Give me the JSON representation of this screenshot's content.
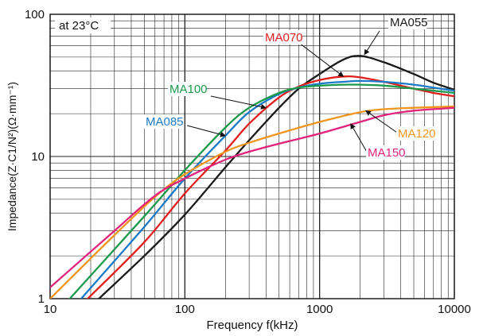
{
  "chart_data": {
    "type": "line",
    "x_scale": "log",
    "y_scale": "log",
    "xlim": [
      10,
      10000
    ],
    "ylim": [
      1,
      100
    ],
    "grid": true,
    "xlabel": "Frequency f(kHz)",
    "ylabel": "Impedance(Z·C1/N²)(Ω·mm⁻¹)",
    "condition_label": "at 23°C",
    "x_ticks": [
      {
        "value": 10,
        "label": "10"
      },
      {
        "value": 100,
        "label": "100"
      },
      {
        "value": 1000,
        "label": "1000"
      },
      {
        "value": 10000,
        "label": "10000"
      }
    ],
    "y_ticks": [
      {
        "value": 1,
        "label": "1"
      },
      {
        "value": 10,
        "label": "10"
      },
      {
        "value": 100,
        "label": "100"
      }
    ],
    "series": [
      {
        "name": "MA055",
        "color": "#1a1a1a",
        "x": [
          23,
          50,
          100,
          200,
          300,
          500,
          700,
          1000,
          1500,
          2000,
          3000,
          5000,
          7000,
          10000
        ],
        "y": [
          1.0,
          2.0,
          3.9,
          8.4,
          13.0,
          22.0,
          30.0,
          38.0,
          48.0,
          51.0,
          46.0,
          38.0,
          33.0,
          29.5
        ]
      },
      {
        "name": "MA070",
        "color": "#e01e1e",
        "x": [
          19,
          50,
          100,
          200,
          300,
          500,
          700,
          1000,
          1500,
          2000,
          3000,
          5000,
          7000,
          10000
        ],
        "y": [
          1.0,
          2.5,
          5.5,
          11.0,
          17.0,
          26.0,
          31.0,
          34.5,
          36.5,
          36.0,
          33.5,
          30.0,
          28.0,
          26.5
        ]
      },
      {
        "name": "MA085",
        "color": "#1b7ac8",
        "x": [
          17,
          50,
          100,
          200,
          300,
          500,
          700,
          1000,
          1500,
          2000,
          3000,
          5000,
          7000,
          10000
        ],
        "y": [
          1.0,
          3.2,
          7.0,
          14.0,
          20.5,
          27.5,
          30.5,
          32.5,
          33.5,
          34.0,
          33.5,
          32.0,
          30.5,
          29.0
        ]
      },
      {
        "name": "MA100",
        "color": "#1a9a4a",
        "x": [
          14,
          50,
          100,
          200,
          300,
          500,
          700,
          1000,
          1500,
          2000,
          3000,
          5000,
          7000,
          10000
        ],
        "y": [
          1.0,
          3.8,
          8.0,
          16.0,
          22.0,
          28.0,
          30.5,
          31.5,
          32.0,
          32.0,
          31.5,
          30.0,
          29.0,
          28.0
        ]
      },
      {
        "name": "MA120",
        "color": "#f0961e",
        "x": [
          10,
          30,
          60,
          100,
          200,
          300,
          500,
          1000,
          2000,
          3000,
          5000,
          10000
        ],
        "y": [
          1.0,
          2.8,
          5.2,
          7.5,
          10.8,
          12.5,
          14.5,
          17.5,
          20.5,
          21.5,
          22.0,
          22.5
        ]
      },
      {
        "name": "MA150",
        "color": "#e0237a",
        "x": [
          10,
          30,
          60,
          100,
          200,
          300,
          500,
          1000,
          2000,
          3000,
          5000,
          10000
        ],
        "y": [
          1.2,
          3.0,
          5.3,
          7.0,
          9.5,
          10.8,
          12.3,
          14.5,
          17.5,
          19.5,
          21.0,
          22.0
        ]
      }
    ],
    "annotations": [
      {
        "label": "MA055",
        "series": "MA055",
        "point_x": 2150,
        "point_y": 52
      },
      {
        "label": "MA070",
        "series": "MA070",
        "point_x": 1500,
        "point_y": 36.5
      },
      {
        "label": "MA100",
        "series": "MA100",
        "point_x": 400,
        "point_y": 22
      },
      {
        "label": "MA085",
        "series": "MA085",
        "point_x": 200,
        "point_y": 14
      },
      {
        "label": "MA120",
        "series": "MA120",
        "point_x": 2200,
        "point_y": 21
      },
      {
        "label": "MA150",
        "series": "MA150",
        "point_x": 1700,
        "point_y": 17
      }
    ]
  }
}
